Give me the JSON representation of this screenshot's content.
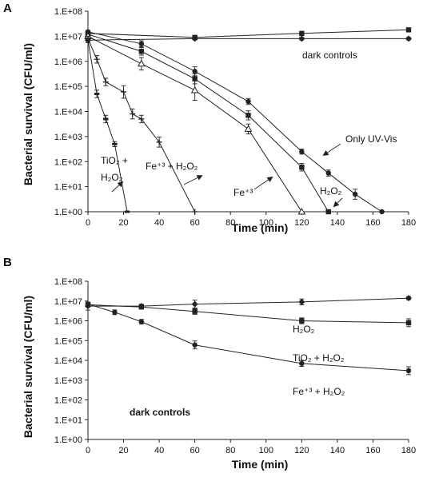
{
  "chart_data": [
    {
      "panel": "A",
      "type": "line",
      "xlabel": "Time (min)",
      "ylabel": "Bacterial survival (CFU/ml)",
      "xlim": [
        0,
        180
      ],
      "ylim_log10": [
        0,
        8
      ],
      "x_ticks": [
        "0",
        "20",
        "40",
        "60",
        "80",
        "100",
        "120",
        "140",
        "160",
        "180"
      ],
      "y_ticks": [
        "1.E+00",
        "1.E+01",
        "1.E+02",
        "1.E+03",
        "1.E+04",
        "1.E+05",
        "1.E+06",
        "1.E+07",
        "1.E+08"
      ],
      "annotations": {
        "dark": "dark controls",
        "uv": "Only UV-Vis",
        "tio2_line1": "TiO₂ +",
        "tio2_line2": "H₂O₂",
        "fe_h2o2": "Fe⁺³ + H₂O₂",
        "fe": "Fe⁺³",
        "h2o2": "H₂O₂"
      },
      "series": [
        {
          "marker": "square",
          "x": [
            0,
            60,
            120,
            180
          ],
          "y": [
            13000000.0,
            9000000.0,
            13000000.0,
            18000000.0
          ],
          "err": [
            0.05,
            0.08,
            0.06,
            0.06
          ]
        },
        {
          "marker": "diamond",
          "x": [
            0,
            60,
            120,
            180
          ],
          "y": [
            7000000.0,
            8000000.0,
            8000000.0,
            8000000.0
          ],
          "err": [
            0.05,
            0.05,
            0.05,
            0.05
          ]
        },
        {
          "marker": "circle",
          "x": [
            0,
            30,
            60,
            90,
            120,
            135,
            150,
            165
          ],
          "y": [
            15000000.0,
            5000000.0,
            400000.0,
            25000.0,
            250,
            35,
            5,
            1
          ],
          "err": [
            0.06,
            0.12,
            0.18,
            0.12,
            0.1,
            0.12,
            0.2,
            0
          ]
        },
        {
          "marker": "square",
          "x": [
            0,
            30,
            60,
            90,
            120,
            135
          ],
          "y": [
            12000000.0,
            2500000.0,
            200000.0,
            7000.0,
            60,
            1
          ],
          "err": [
            0.06,
            0.15,
            0.2,
            0.18,
            0.15,
            0
          ]
        },
        {
          "marker": "triangle",
          "x": [
            0,
            30,
            60,
            90,
            120
          ],
          "y": [
            10000000.0,
            800000.0,
            70000.0,
            2000.0,
            1
          ],
          "err": [
            0.08,
            0.25,
            0.4,
            0.2,
            0
          ]
        },
        {
          "marker": "plus",
          "x": [
            0,
            5,
            10,
            20,
            25,
            30,
            40,
            60
          ],
          "y": [
            8000000.0,
            1200000.0,
            150000.0,
            60000.0,
            8000.0,
            5000.0,
            600,
            1
          ],
          "err": [
            0.1,
            0.15,
            0.15,
            0.25,
            0.2,
            0.15,
            0.2,
            0
          ]
        },
        {
          "marker": "dash",
          "x": [
            0,
            5,
            10,
            15,
            22
          ],
          "y": [
            7000000.0,
            50000.0,
            5000.0,
            500,
            1
          ],
          "err": [
            0.1,
            0.15,
            0.15,
            0.1,
            0
          ]
        }
      ]
    },
    {
      "panel": "B",
      "type": "line",
      "xlabel": "Time (min)",
      "ylabel": "Bacterial survival (CFU/ml)",
      "xlim": [
        0,
        180
      ],
      "ylim_log10": [
        0,
        8
      ],
      "x_ticks": [
        "0",
        "20",
        "40",
        "60",
        "80",
        "100",
        "120",
        "140",
        "160",
        "180"
      ],
      "y_ticks": [
        "1.E+00",
        "1.E+01",
        "1.E+02",
        "1.E+03",
        "1.E+04",
        "1.E+05",
        "1.E+06",
        "1.E+07",
        "1.E+08"
      ],
      "annotations": {
        "h2o2": "H₂O₂",
        "tio2_h2o2": "TiO₂ + H₂O₂",
        "fe_h2o2": "Fe⁺³ + H₂O₂",
        "dark": "dark controls"
      },
      "series": [
        {
          "marker": "diamond",
          "x": [
            0,
            30,
            60,
            120,
            180
          ],
          "y": [
            5500000.0,
            5500000.0,
            7000000.0,
            9000000.0,
            14000000.0
          ],
          "err": [
            0.2,
            0.1,
            0.2,
            0.15,
            0.08
          ]
        },
        {
          "marker": "square",
          "x": [
            0,
            30,
            60,
            120,
            180
          ],
          "y": [
            6500000.0,
            5000000.0,
            3000000.0,
            1000000.0,
            800000.0
          ],
          "err": [
            0.1,
            0.1,
            0.15,
            0.15,
            0.2
          ]
        },
        {
          "marker": "circle",
          "x": [
            0,
            15,
            30,
            60,
            120,
            180
          ],
          "y": [
            7000000.0,
            2700000.0,
            900000.0,
            60000.0,
            7000.0,
            3000.0
          ],
          "err": [
            0.1,
            0.12,
            0.12,
            0.2,
            0.15,
            0.2
          ]
        }
      ]
    }
  ]
}
